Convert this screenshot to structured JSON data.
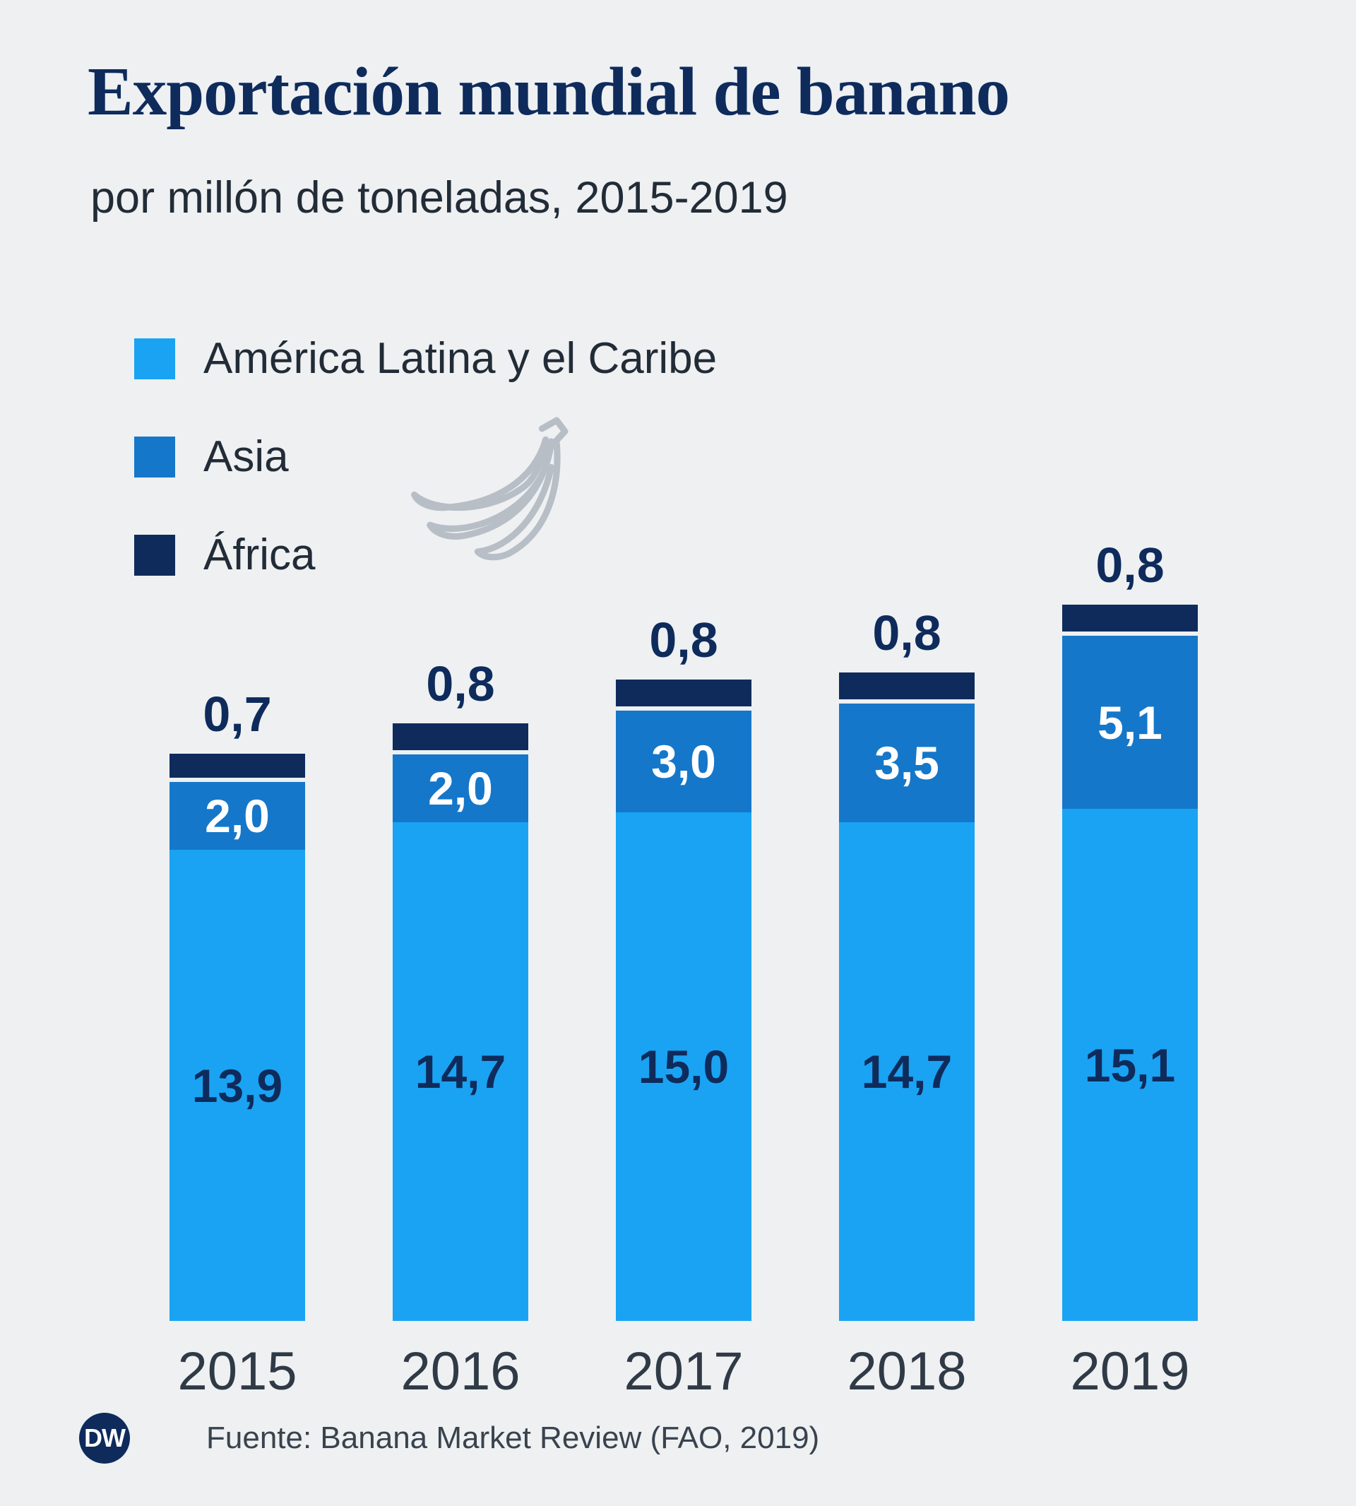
{
  "header": {
    "title": "Exportación mundial de banano",
    "subtitle": "por millón de toneladas, 2015-2019"
  },
  "legend": [
    {
      "id": "latam",
      "label": "América Latina y el Caribe",
      "color": "#1aa3f2"
    },
    {
      "id": "asia",
      "label": "Asia",
      "color": "#1577c9"
    },
    {
      "id": "africa",
      "label": "África",
      "color": "#0e2b5c"
    }
  ],
  "chart_data": {
    "type": "bar",
    "stacked": true,
    "title": "Exportación mundial de banano",
    "subtitle": "por millón de toneladas, 2015-2019",
    "categories": [
      "2015",
      "2016",
      "2017",
      "2018",
      "2019"
    ],
    "series": [
      {
        "id": "latam",
        "name": "América Latina y el Caribe",
        "color": "#1aa3f2",
        "values": [
          13.9,
          14.7,
          15.0,
          14.7,
          15.1
        ],
        "labels": [
          "13,9",
          "14,7",
          "15,0",
          "14,7",
          "15,1"
        ],
        "label_style": "inside-dark"
      },
      {
        "id": "asia",
        "name": "Asia",
        "color": "#1577c9",
        "values": [
          2.0,
          2.0,
          3.0,
          3.5,
          5.1
        ],
        "labels": [
          "2,0",
          "2,0",
          "3,0",
          "3,5",
          "5,1"
        ],
        "label_style": "inside-white"
      },
      {
        "id": "africa",
        "name": "África",
        "color": "#0e2b5c",
        "values": [
          0.7,
          0.8,
          0.8,
          0.8,
          0.8
        ],
        "labels": [
          "0,7",
          "0,8",
          "0,8",
          "0,8",
          "0,8"
        ],
        "label_style": "above-bar"
      }
    ],
    "ylim": [
      0,
      21.0
    ],
    "grid": false,
    "legend_position": "top-left",
    "xlabel": "",
    "ylabel": ""
  },
  "icons": {
    "banana": "banana-bunch-outline",
    "logo": "dw-logo-circle"
  },
  "footer": {
    "logo": "DW",
    "source": "Fuente: Banana Market Review (FAO, 2019)"
  },
  "colors": {
    "background": "#eef0f2",
    "title": "#0e2b5c",
    "subtitle": "#222c37",
    "latam": "#1aa3f2",
    "asia": "#1577c9",
    "africa": "#0e2b5c",
    "label_inside_light_bar": "#0e2b5c",
    "label_inside_mid_bar": "#ffffff",
    "label_above_bar": "#0e2b5c",
    "year_label": "#2f3a46",
    "source_text": "#39434e",
    "banana_icon": "#b7bec6"
  }
}
